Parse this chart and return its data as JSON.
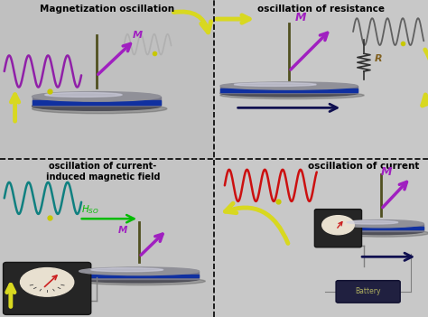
{
  "figsize": [
    4.74,
    3.51
  ],
  "dpi": 100,
  "bg_color": "#b8b8b8",
  "panel_bg_tl": "#c0c0c0",
  "panel_bg_tr": "#c8c8c8",
  "panel_bg_bl": "#c4c4c4",
  "panel_bg_br": "#c8c8c8",
  "title_tl": "Magnetization oscillation",
  "title_tr": "oscillation of resistance",
  "title_bl": "oscillation of current-\ninduced magnetic field",
  "title_br": "oscillation of current",
  "M_color": "#a020c0",
  "R_color": "#806020",
  "Hso_color": "#00bb00",
  "wave_purple": "#9020a8",
  "wave_gray": "#606060",
  "wave_red": "#cc1010",
  "wave_teal": "#108080",
  "arrow_yellow": "#d8d820",
  "arrow_dark": "#101050",
  "dot_yellow": "#c8c800",
  "disk_top": "#909098",
  "disk_side": "#505058",
  "disk_band": "#1030a0",
  "disk_shine": "#d0d0e0",
  "rod_color": "#505020"
}
